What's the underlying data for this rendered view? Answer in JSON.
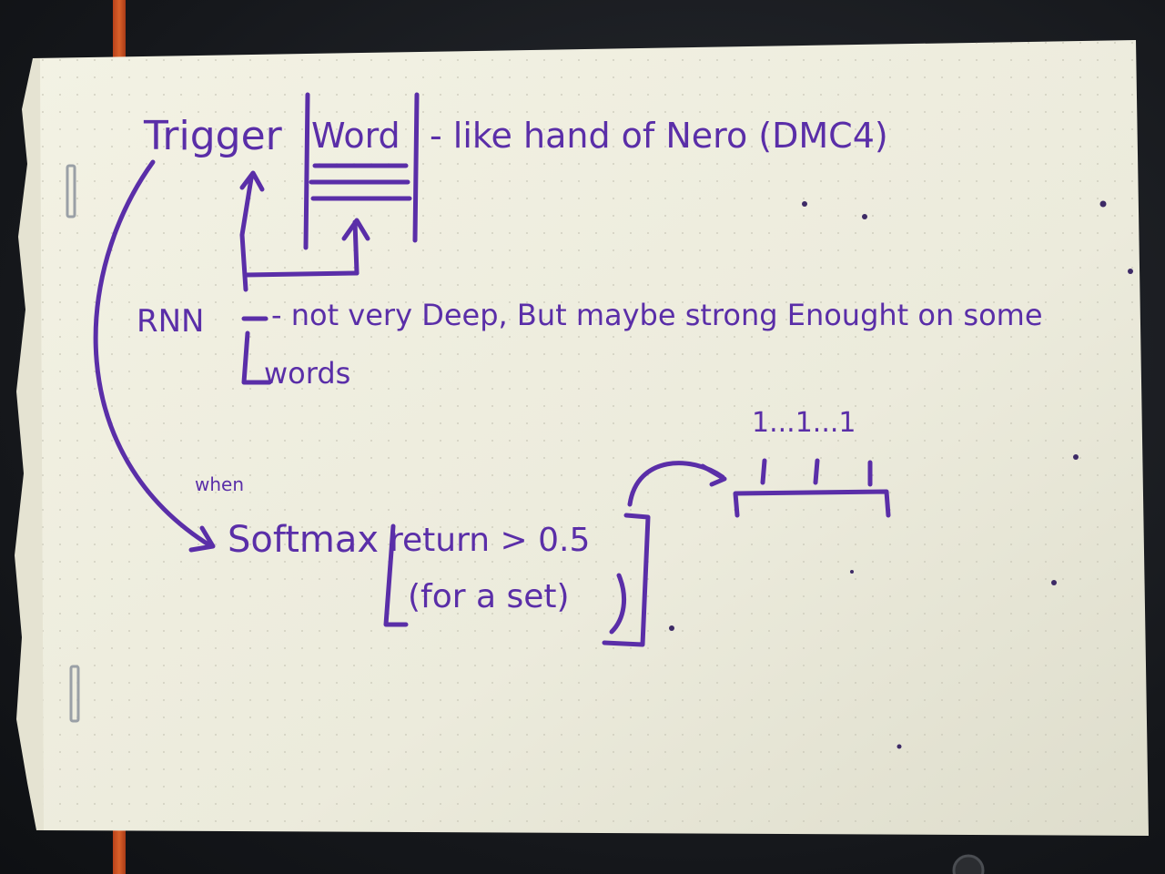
{
  "photo": {
    "subject": "handwritten-notes-on-dotted-paper",
    "ink_color": "#5a2ea8",
    "paper_color": "#efeedd"
  },
  "notes": {
    "line1_trigger": "Trigger",
    "line1_word": "Word",
    "line1_rest": "- like hand of Nero (DMC4)",
    "line2_rnn": "RNN",
    "line2_note": "- not very Deep, But maybe strong Enought on some",
    "line3_words": "words",
    "line4_when": "when",
    "line4_softmax": "Softmax",
    "line4_return": "return > 0.5",
    "line5_set": "(for a set)",
    "vector_ones": "1...1...1"
  }
}
